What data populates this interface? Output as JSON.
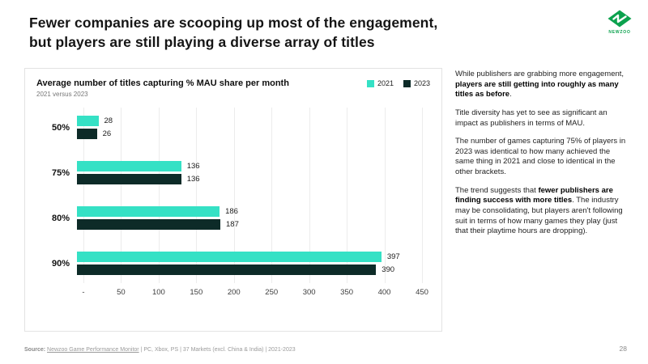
{
  "slide": {
    "title_line1": "Fewer companies are scooping up most of the engagement,",
    "title_line2": "but players are still playing a diverse array of titles",
    "page_number": "28",
    "logo_text": "newzoo",
    "logo_color": "#0CA24E"
  },
  "chart": {
    "title": "Average number of titles capturing % MAU share per month",
    "subtitle": "2021 versus 2023",
    "legend": [
      {
        "label": "2021",
        "color": "#35E1C5"
      },
      {
        "label": "2023",
        "color": "#0D2B28"
      }
    ]
  },
  "chart_data": {
    "type": "bar",
    "orientation": "horizontal",
    "title": "Average number of titles capturing % MAU share per month",
    "subtitle": "2021 versus 2023",
    "categories": [
      "50%",
      "75%",
      "80%",
      "90%"
    ],
    "series": [
      {
        "name": "2021",
        "color": "#35E1C5",
        "values": [
          28,
          136,
          186,
          397
        ]
      },
      {
        "name": "2023",
        "color": "#0D2B28",
        "values": [
          26,
          136,
          187,
          390
        ]
      }
    ],
    "xlim": [
      0,
      450
    ],
    "xticks": [
      "-",
      "50",
      "100",
      "150",
      "200",
      "250",
      "300",
      "350",
      "400",
      "450"
    ],
    "grid": true,
    "legend_position": "top-right"
  },
  "sidebar": {
    "p1_normal": "While publishers are grabbing more engagement, ",
    "p1_bold": "players are still getting into roughly as many titles as before",
    "p1_end": ".",
    "p2": "Title diversity has yet to see as significant an impact as publishers in terms of MAU.",
    "p3": "The number of games capturing 75% of players in 2023 was identical to how many achieved the same thing in 2021 and close to identical in the other brackets.",
    "p4_start": "The trend suggests that ",
    "p4_bold": "fewer publishers are finding success with more titles",
    "p4_end": ". The industry may be consolidating, but players aren't following suit in terms of how many games they play (just that their playtime hours are dropping)."
  },
  "footer": {
    "source_label": "Source:",
    "source_link": "Newzoo Game Performance Monitor",
    "source_rest": " | PC, Xbox, PS | 37 Markets (excl. China & India) | 2021-2023"
  }
}
